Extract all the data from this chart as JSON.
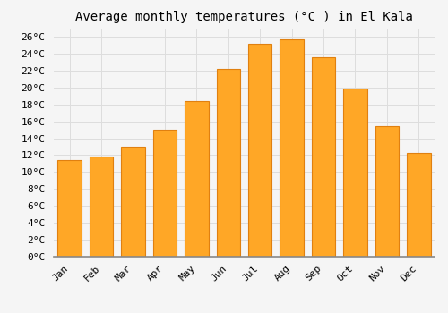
{
  "title": "Average monthly temperatures (°C ) in El Kala",
  "months": [
    "Jan",
    "Feb",
    "Mar",
    "Apr",
    "May",
    "Jun",
    "Jul",
    "Aug",
    "Sep",
    "Oct",
    "Nov",
    "Dec"
  ],
  "temperatures": [
    11.4,
    11.8,
    13.0,
    15.0,
    18.4,
    22.2,
    25.2,
    25.7,
    23.6,
    19.9,
    15.4,
    12.3
  ],
  "bar_color": "#FFA726",
  "bar_edge_color": "#E08010",
  "background_color": "#F5F5F5",
  "plot_bg_color": "#F5F5F5",
  "grid_color": "#DDDDDD",
  "ylim": [
    0,
    27
  ],
  "ytick_step": 2,
  "title_fontsize": 10,
  "tick_fontsize": 8,
  "font_family": "monospace"
}
